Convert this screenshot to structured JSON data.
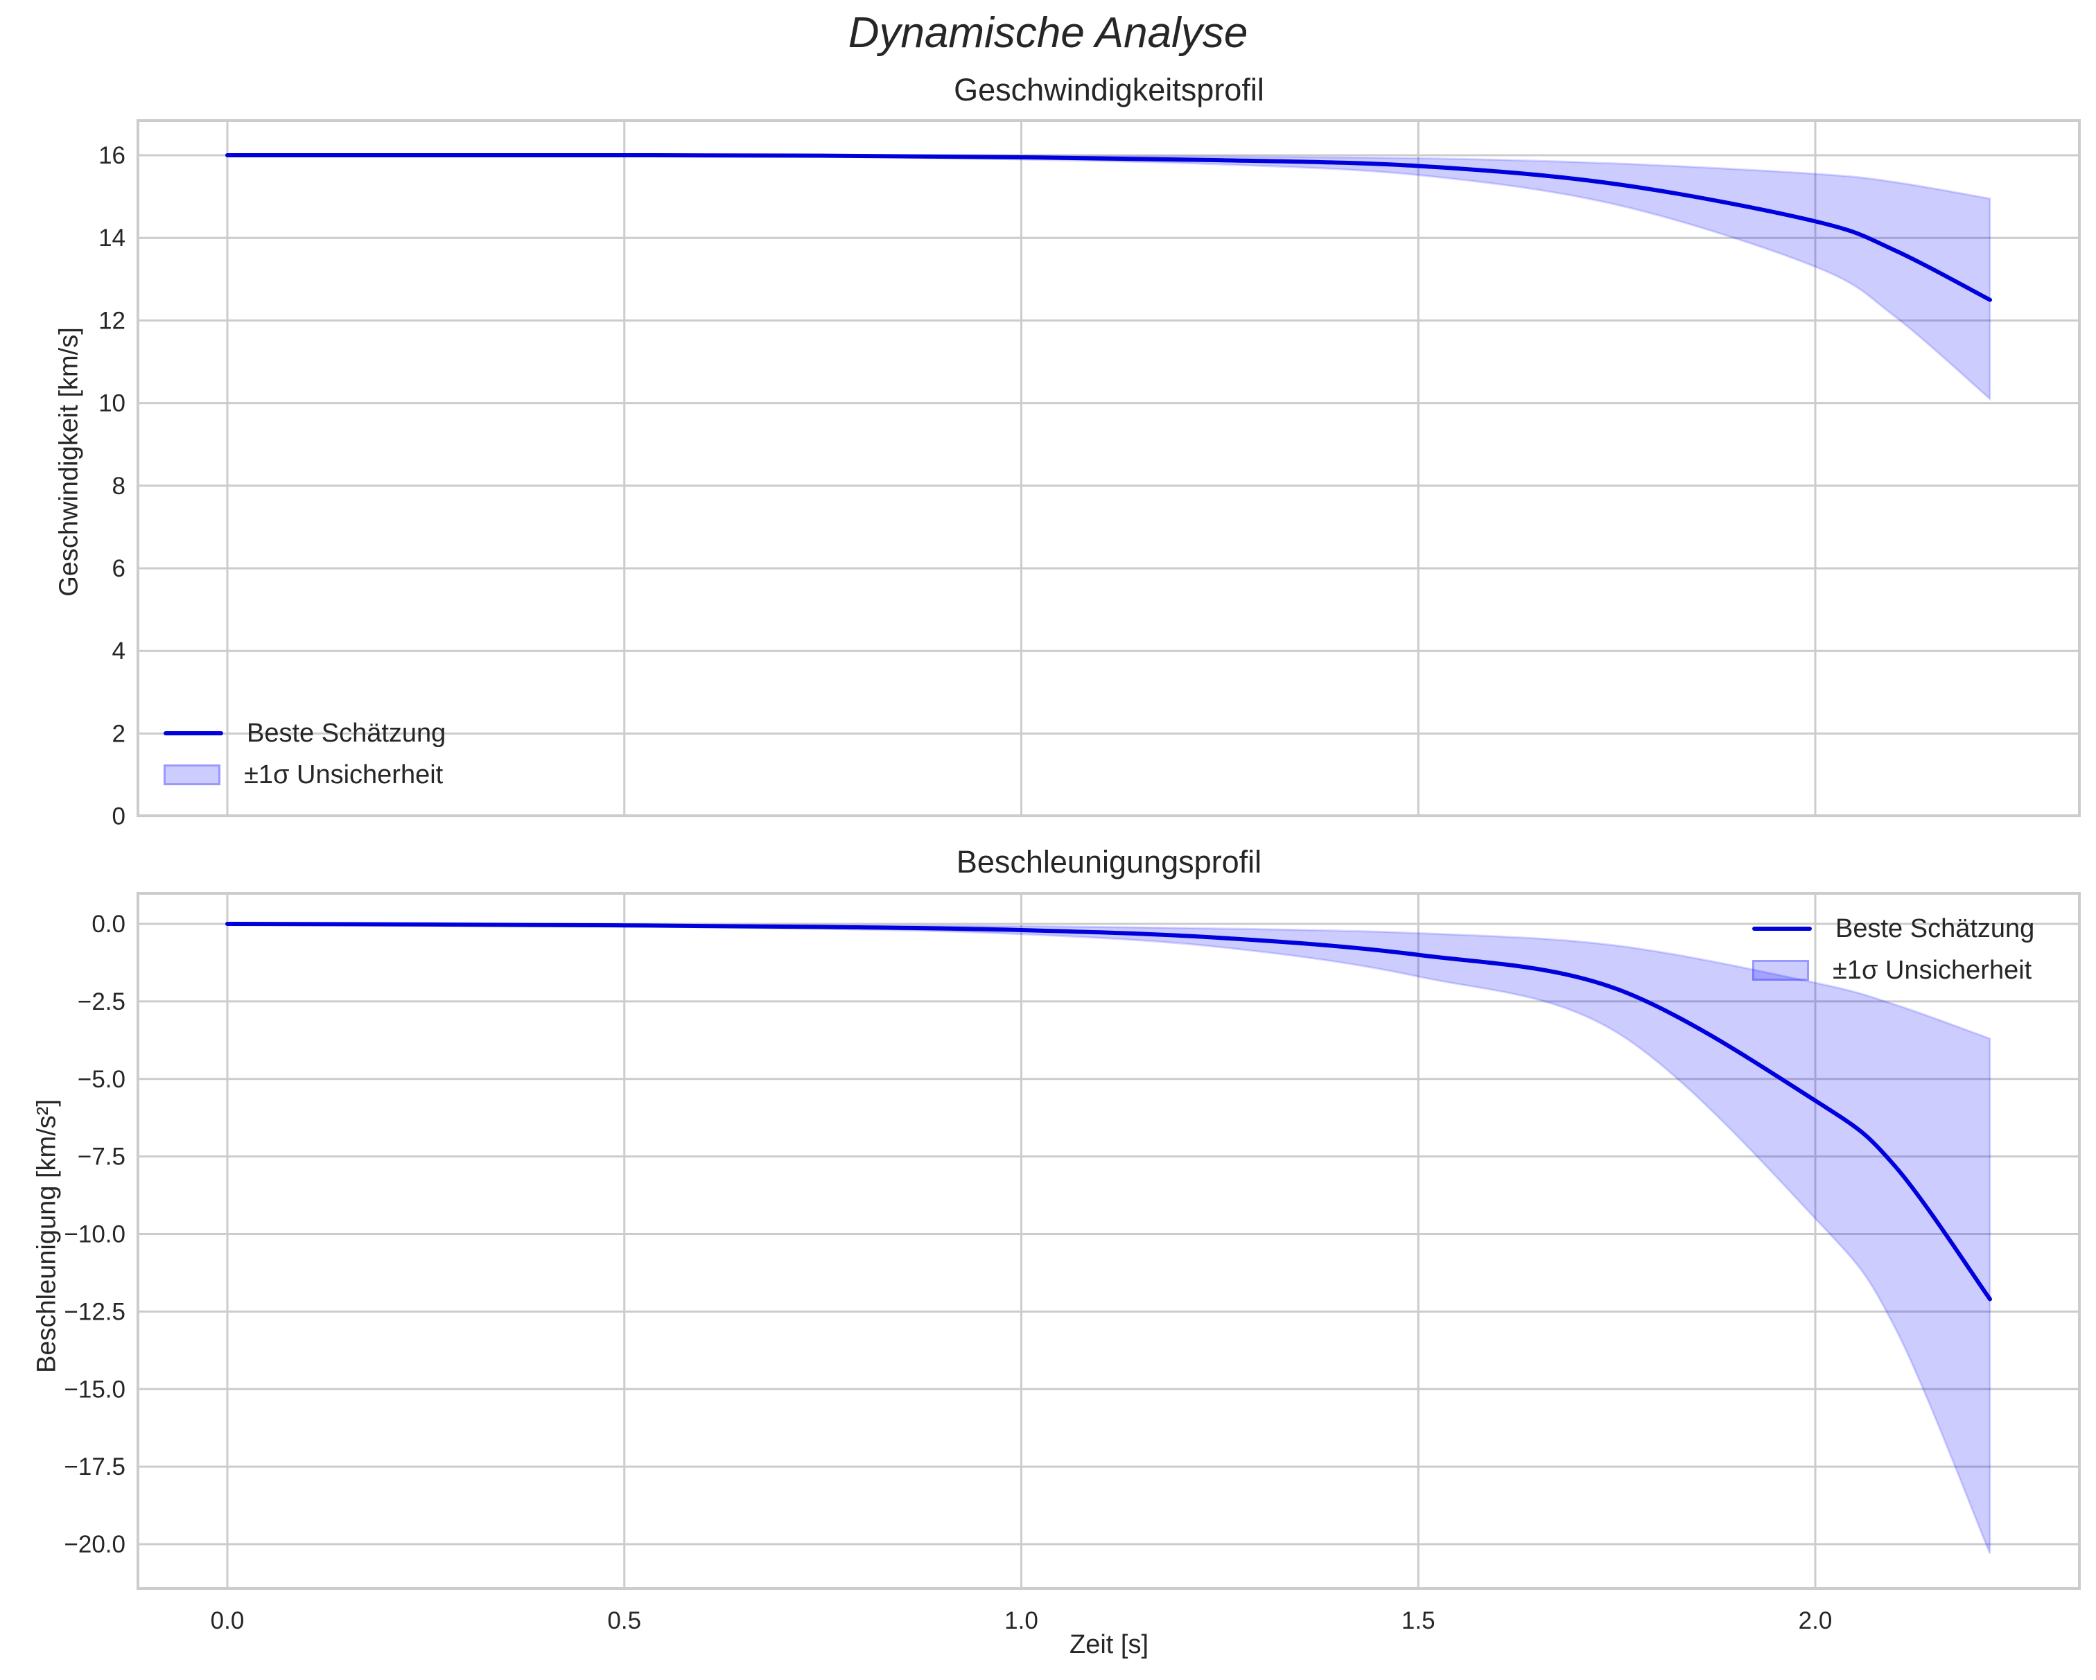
{
  "figure": {
    "suptitle": "Dynamische Analyse"
  },
  "panels": [
    {
      "title": "Geschwindigkeitsprofil",
      "ylabel": "Geschwindigkeit [km/s]",
      "yticks": [
        "0",
        "2",
        "4",
        "6",
        "8",
        "10",
        "12",
        "14",
        "16"
      ],
      "legend": {
        "line_label": "Beste Schätzung",
        "band_label": "±1σ Unsicherheit",
        "position": "lower left"
      }
    },
    {
      "title": "Beschleunigungsprofil",
      "ylabel": "Beschleunigung [km/s²]",
      "yticks": [
        "0.0",
        "−2.5",
        "−5.0",
        "−7.5",
        "−10.0",
        "−12.5",
        "−15.0",
        "−17.5",
        "−20.0"
      ],
      "legend": {
        "line_label": "Beste Schätzung",
        "band_label": "±1σ Unsicherheit",
        "position": "upper right"
      }
    }
  ],
  "xaxis": {
    "label": "Zeit [s]",
    "ticks": [
      "0.0",
      "0.5",
      "1.0",
      "1.5",
      "2.0"
    ]
  },
  "colors": {
    "line": "#0000dd",
    "band_fill": "rgba(0,0,255,0.2)",
    "grid": "#cccccc",
    "text": "#262626"
  },
  "chart_data": [
    {
      "type": "line",
      "title": "Geschwindigkeitsprofil",
      "xlabel": "Zeit [s]",
      "ylabel": "Geschwindigkeit [km/s]",
      "xlim": [
        -0.11,
        2.33
      ],
      "ylim": [
        0,
        16.8
      ],
      "grid": true,
      "legend_position": "lower left",
      "x": [
        0.0,
        0.25,
        0.5,
        0.75,
        1.0,
        1.25,
        1.5,
        1.75,
        2.0,
        2.1,
        2.22
      ],
      "series": [
        {
          "name": "Beste Schätzung",
          "values": [
            16.0,
            16.0,
            16.0,
            15.99,
            15.95,
            15.88,
            15.74,
            15.3,
            14.4,
            13.7,
            12.5
          ]
        },
        {
          "name": "±1σ Unsicherheit (oben)",
          "values": [
            16.0,
            16.0,
            16.0,
            16.0,
            15.99,
            15.97,
            15.93,
            15.8,
            15.55,
            15.35,
            14.95
          ]
        },
        {
          "name": "±1σ Unsicherheit (unten)",
          "values": [
            16.0,
            16.0,
            16.0,
            15.98,
            15.9,
            15.78,
            15.52,
            14.8,
            13.3,
            12.1,
            10.1
          ]
        }
      ]
    },
    {
      "type": "line",
      "title": "Beschleunigungsprofil",
      "xlabel": "Zeit [s]",
      "ylabel": "Beschleunigung [km/s²]",
      "xlim": [
        -0.11,
        2.33
      ],
      "ylim": [
        -21.4,
        1.0
      ],
      "grid": true,
      "legend_position": "upper right",
      "x": [
        0.0,
        0.25,
        0.5,
        0.75,
        1.0,
        1.25,
        1.5,
        1.75,
        2.0,
        2.1,
        2.22
      ],
      "series": [
        {
          "name": "Beste Schätzung",
          "values": [
            0.0,
            -0.02,
            -0.05,
            -0.1,
            -0.2,
            -0.45,
            -1.0,
            -2.1,
            -5.7,
            -7.8,
            -12.1
          ]
        },
        {
          "name": "±1σ Unsicherheit (oben)",
          "values": [
            0.0,
            -0.01,
            -0.02,
            -0.04,
            -0.07,
            -0.15,
            -0.3,
            -0.7,
            -1.9,
            -2.6,
            -3.7
          ]
        },
        {
          "name": "±1σ Unsicherheit (unten)",
          "values": [
            0.0,
            -0.03,
            -0.08,
            -0.16,
            -0.33,
            -0.75,
            -1.7,
            -3.5,
            -9.5,
            -13.0,
            -20.3
          ]
        }
      ]
    }
  ]
}
